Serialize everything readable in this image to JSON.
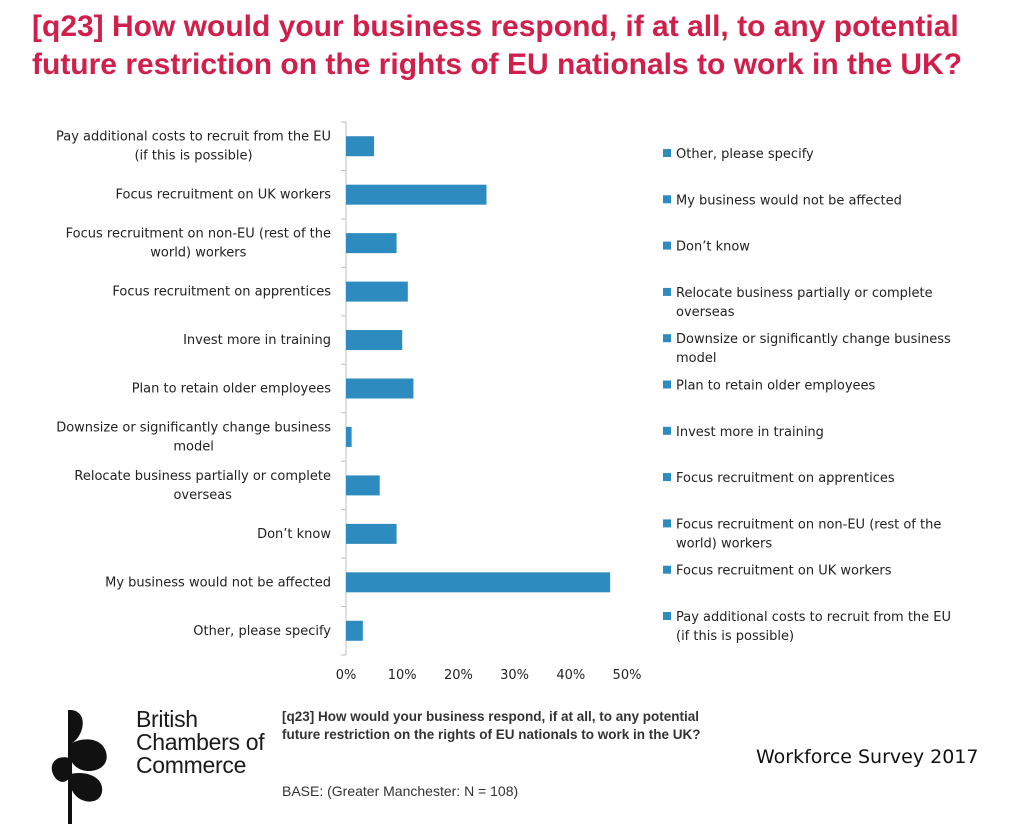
{
  "title": "[q23] How would your business respond, if at all, to any potential future restriction on the rights of EU nationals to work in the UK?",
  "chart_data": {
    "type": "bar",
    "orientation": "horizontal",
    "categories": [
      [
        "Pay additional costs to recruit from the EU",
        "(if this is possible)"
      ],
      [
        "Focus recruitment on UK workers"
      ],
      [
        "Focus recruitment on non-EU (rest of the",
        "world) workers"
      ],
      [
        "Focus recruitment on apprentices"
      ],
      [
        "Invest more in training"
      ],
      [
        "Plan to retain older employees"
      ],
      [
        "Downsize or significantly change business",
        "model"
      ],
      [
        "Relocate business partially or complete",
        "overseas"
      ],
      [
        "Don’t know"
      ],
      [
        "My business would not be affected"
      ],
      [
        "Other, please specify"
      ]
    ],
    "values": [
      5,
      25,
      9,
      11,
      10,
      12,
      1,
      6,
      9,
      47,
      3
    ],
    "xlim": [
      0,
      50
    ],
    "x_ticks": [
      "0%",
      "10%",
      "20%",
      "30%",
      "40%",
      "50%"
    ],
    "bar_color": "#2e8bc0",
    "legend": [
      [
        "Other, please specify"
      ],
      [
        "My business would not be affected"
      ],
      [
        "Don’t know"
      ],
      [
        "Relocate business partially or complete",
        "overseas"
      ],
      [
        "Downsize or significantly change business",
        "model"
      ],
      [
        "Plan to retain older employees"
      ],
      [
        "Invest more in training"
      ],
      [
        "Focus recruitment on apprentices"
      ],
      [
        "Focus recruitment on non-EU (rest of the",
        "world) workers"
      ],
      [
        "Focus recruitment on UK workers"
      ],
      [
        "Pay additional costs to recruit from the EU",
        "(if this is possible)"
      ]
    ],
    "legend_position": "right"
  },
  "footer": {
    "question": "[q23] How would your business respond, if at all, to any potential future restriction on the rights of EU nationals to work in the UK?",
    "base": "BASE: (Greater Manchester: N = 108)",
    "survey": "Workforce Survey 2017"
  },
  "logo": {
    "lines": [
      "British",
      "Chambers of",
      "Commerce"
    ]
  }
}
